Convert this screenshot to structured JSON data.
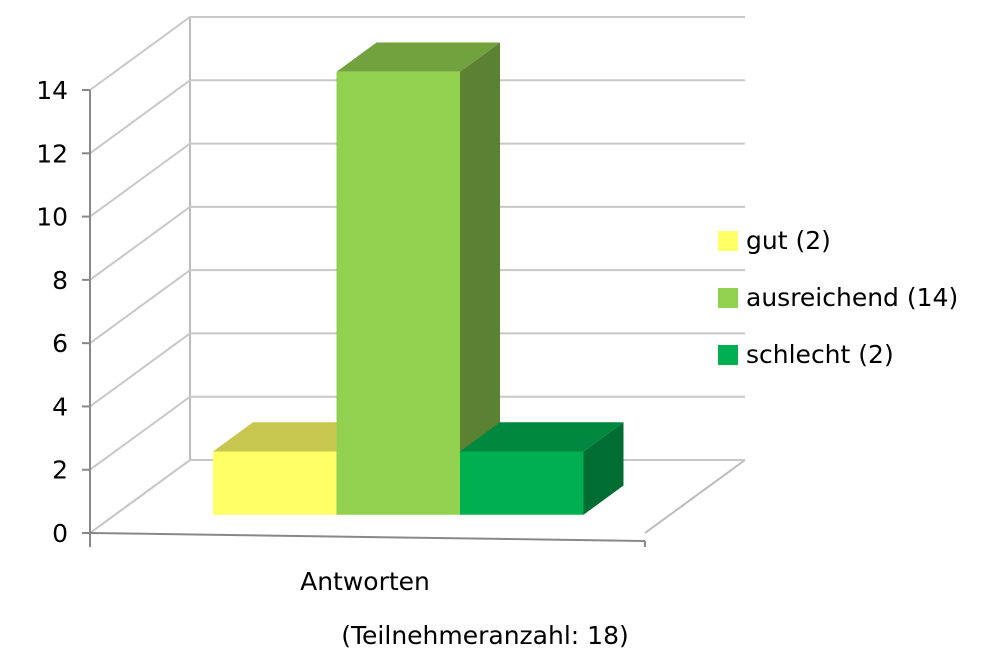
{
  "chart_data": {
    "type": "bar3d",
    "categories": [
      "Antworten"
    ],
    "x_label": "(Teilnehmeranzahl: 18)",
    "series": [
      {
        "name": "gut (2)",
        "color": "#ffff66",
        "values": [
          2
        ]
      },
      {
        "name": "ausreichend (14)",
        "color": "#92d050",
        "values": [
          14
        ]
      },
      {
        "name": "schlecht (2)",
        "color": "#00b050",
        "values": [
          2
        ]
      }
    ],
    "ylim": [
      0,
      14
    ],
    "yticks": [
      0,
      2,
      4,
      6,
      8,
      10,
      12,
      14
    ],
    "grid": true,
    "legend": "right"
  }
}
